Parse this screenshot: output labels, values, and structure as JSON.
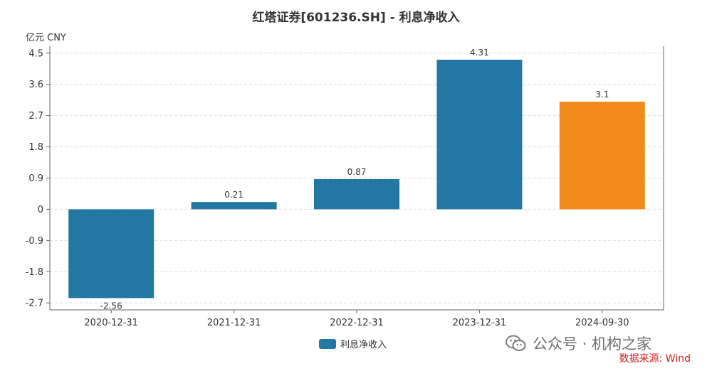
{
  "chart_data": {
    "type": "bar",
    "title": "红塔证券[601236.SH] - 利息净收入",
    "unit_label": "亿元  CNY",
    "categories": [
      "2020-12-31",
      "2021-12-31",
      "2022-12-31",
      "2023-12-31",
      "2024-09-30"
    ],
    "values": [
      -2.56,
      0.21,
      0.87,
      4.31,
      3.1
    ],
    "value_labels": [
      "-2.56",
      "0.21",
      "0.87",
      "4.31",
      "3.1"
    ],
    "series": [
      {
        "name": "利息净收入",
        "values": [
          -2.56,
          0.21,
          0.87,
          4.31,
          3.1
        ]
      }
    ],
    "yticks": [
      "4.5",
      "3.6",
      "2.7",
      "1.8",
      "0.9",
      "0",
      "-0.9",
      "-1.8",
      "-2.7"
    ],
    "ylim": [
      -2.9,
      4.7
    ],
    "grid": true,
    "legend_position": "bottom-center",
    "colors": {
      "bar": "#2277a3",
      "highlight_bar": "#f28a1a",
      "grid": "#dddddd",
      "axis": "#666666"
    },
    "highlight_index": 4
  },
  "watermark": "公众号 · 机构之家",
  "watermark_icon": "wechat-icon",
  "source": "数据来源: Wind"
}
